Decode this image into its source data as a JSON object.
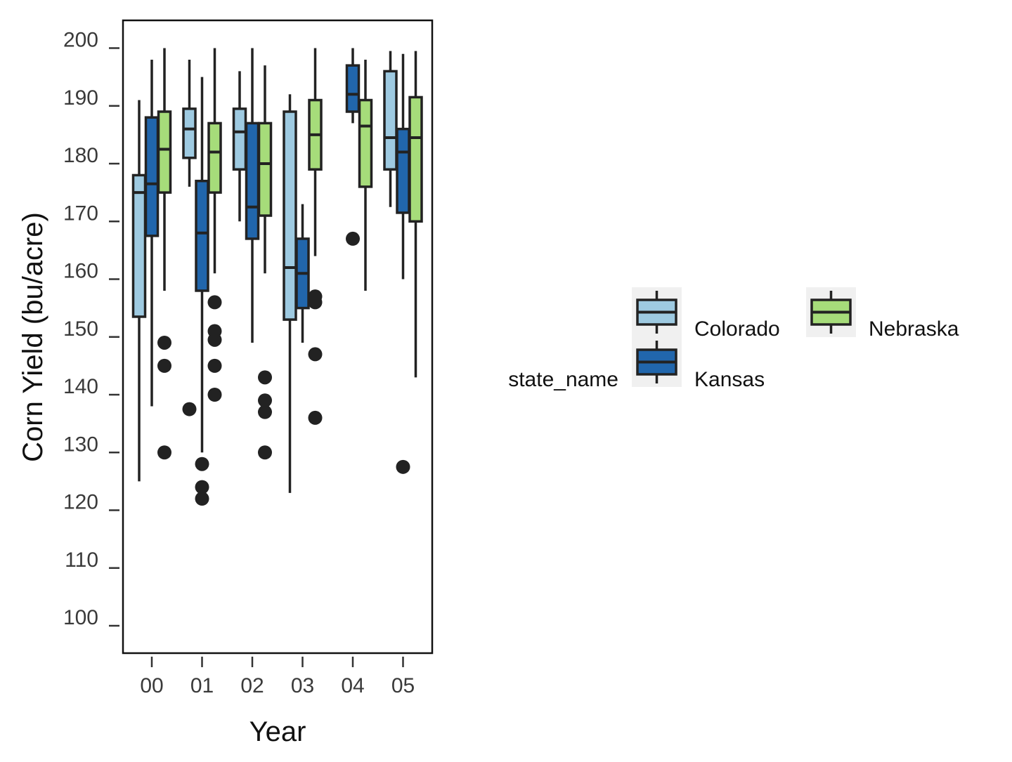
{
  "chart_data": {
    "type": "boxplot",
    "xlabel": "Year",
    "ylabel": "Corn Yield (bu/acre)",
    "categories": [
      "00",
      "01",
      "02",
      "03",
      "04",
      "05"
    ],
    "yticks": [
      100,
      110,
      120,
      130,
      140,
      150,
      160,
      170,
      180,
      190,
      200
    ],
    "ylim": [
      95,
      205
    ],
    "grid": false,
    "legend": {
      "title": "state_name",
      "placement": "right",
      "entries": [
        "Colorado",
        "Kansas",
        "Nebraska"
      ]
    },
    "series": [
      {
        "name": "Colorado",
        "color": "#9ecae1",
        "boxes": [
          {
            "category": "00",
            "whisker_low": 125,
            "q1": 153.5,
            "median": 175,
            "q3": 178,
            "whisker_high": 191,
            "outliers": []
          },
          {
            "category": "01",
            "whisker_low": 176,
            "q1": 181,
            "median": 186,
            "q3": 189.5,
            "whisker_high": 198,
            "outliers": [
              137.5
            ]
          },
          {
            "category": "02",
            "whisker_low": 170,
            "q1": 179,
            "median": 185.5,
            "q3": 189.5,
            "whisker_high": 196,
            "outliers": []
          },
          {
            "category": "03",
            "whisker_low": 123,
            "q1": 153,
            "median": 162,
            "q3": 189,
            "whisker_high": 192,
            "outliers": []
          },
          {
            "category": "05",
            "whisker_low": 172.5,
            "q1": 179,
            "median": 184.5,
            "q3": 196,
            "whisker_high": 199.5,
            "outliers": []
          }
        ]
      },
      {
        "name": "Kansas",
        "color": "#2166ac",
        "boxes": [
          {
            "category": "00",
            "whisker_low": 138,
            "q1": 167.5,
            "median": 176.5,
            "q3": 188,
            "whisker_high": 198,
            "outliers": []
          },
          {
            "category": "01",
            "whisker_low": 130,
            "q1": 158,
            "median": 168,
            "q3": 177,
            "whisker_high": 195,
            "outliers": [
              128,
              124,
              122
            ]
          },
          {
            "category": "02",
            "whisker_low": 149,
            "q1": 167,
            "median": 172.5,
            "q3": 187,
            "whisker_high": 200,
            "outliers": []
          },
          {
            "category": "03",
            "whisker_low": 149,
            "q1": 155,
            "median": 161,
            "q3": 167,
            "whisker_high": 173,
            "outliers": []
          },
          {
            "category": "04",
            "whisker_low": 187,
            "q1": 189,
            "median": 192,
            "q3": 197,
            "whisker_high": 200,
            "outliers": [
              167
            ]
          },
          {
            "category": "05",
            "whisker_low": 160,
            "q1": 171.5,
            "median": 182,
            "q3": 186,
            "whisker_high": 199,
            "outliers": [
              127.5
            ]
          }
        ]
      },
      {
        "name": "Nebraska",
        "color": "#a6dc7a",
        "boxes": [
          {
            "category": "00",
            "whisker_low": 158,
            "q1": 175,
            "median": 182.5,
            "q3": 189,
            "whisker_high": 200,
            "outliers": [
              149,
              145,
              130
            ]
          },
          {
            "category": "01",
            "whisker_low": 161,
            "q1": 175,
            "median": 182,
            "q3": 187,
            "whisker_high": 200,
            "outliers": [
              156,
              151,
              149.5,
              145,
              140
            ]
          },
          {
            "category": "02",
            "whisker_low": 161,
            "q1": 171,
            "median": 180,
            "q3": 187,
            "whisker_high": 197,
            "outliers": [
              143,
              139,
              137,
              130
            ]
          },
          {
            "category": "03",
            "whisker_low": 164,
            "q1": 179,
            "median": 185,
            "q3": 191,
            "whisker_high": 200,
            "outliers": [
              157,
              156,
              147,
              136
            ]
          },
          {
            "category": "04",
            "whisker_low": 158,
            "q1": 176,
            "median": 186.5,
            "q3": 191,
            "whisker_high": 198,
            "outliers": []
          },
          {
            "category": "05",
            "whisker_low": 143,
            "q1": 170,
            "median": 184.5,
            "q3": 191.5,
            "whisker_high": 199.5,
            "outliers": []
          }
        ]
      }
    ]
  }
}
